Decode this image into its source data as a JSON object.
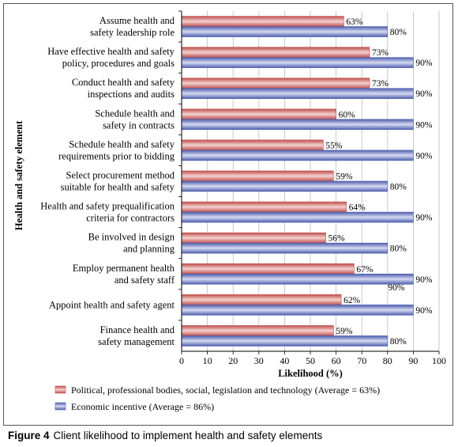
{
  "caption": {
    "figure_label": "Figure 4",
    "text": "Client likelihood to implement health and safety elements"
  },
  "colors": {
    "series1_base": "#c0504d",
    "series1_light": "#f3d2d0",
    "series2_base": "#4f5fae",
    "series2_light": "#d6dbf2"
  },
  "chart_data": {
    "type": "bar",
    "orientation": "horizontal",
    "xlabel": "Likelihood (%)",
    "ylabel": "Health and safety element",
    "xlim": [
      0,
      100
    ],
    "xticks": [
      "0",
      "10",
      "20",
      "30",
      "40",
      "50",
      "60",
      "70",
      "80",
      "90",
      "100"
    ],
    "categories": [
      [
        "Assume health and",
        "safety leadership role"
      ],
      [
        "Have effective health and safety",
        "policy, procedures and goals"
      ],
      [
        "Conduct health and safety",
        "inspections and audits"
      ],
      [
        "Schedule health and",
        "safety in contracts"
      ],
      [
        "Schedule health and safety",
        "requirements prior to bidding"
      ],
      [
        "Select procurement method",
        "suitable for health and safety"
      ],
      [
        "Health and safety prequalification",
        "criteria for contractors"
      ],
      [
        "Be involved in design",
        "and planning"
      ],
      [
        "Employ permanent health",
        "and safety staff"
      ],
      [
        "Appoint health and safety agent"
      ],
      [
        "Finance health and",
        "safety management"
      ]
    ],
    "series": [
      {
        "name": "Political, professional bodies, social, legislation and technology (Average = 63%)",
        "values": [
          63,
          73,
          73,
          60,
          55,
          59,
          64,
          56,
          67,
          62,
          59
        ],
        "labels": [
          "63%",
          "73%",
          "73%",
          "60%",
          "55%",
          "59%",
          "64%",
          "56%",
          "67%",
          "62%",
          "59%"
        ]
      },
      {
        "name": "Economic incentive (Average = 86%)",
        "values": [
          80,
          90,
          90,
          90,
          90,
          80,
          90,
          80,
          90,
          90,
          80
        ],
        "labels": [
          "80%",
          "90%",
          "90%",
          "90%",
          "90%",
          "80%",
          "90%",
          "80%",
          "90%",
          "90%",
          "80%"
        ]
      }
    ],
    "annotations": [
      "90%"
    ],
    "legend_position": "bottom"
  }
}
